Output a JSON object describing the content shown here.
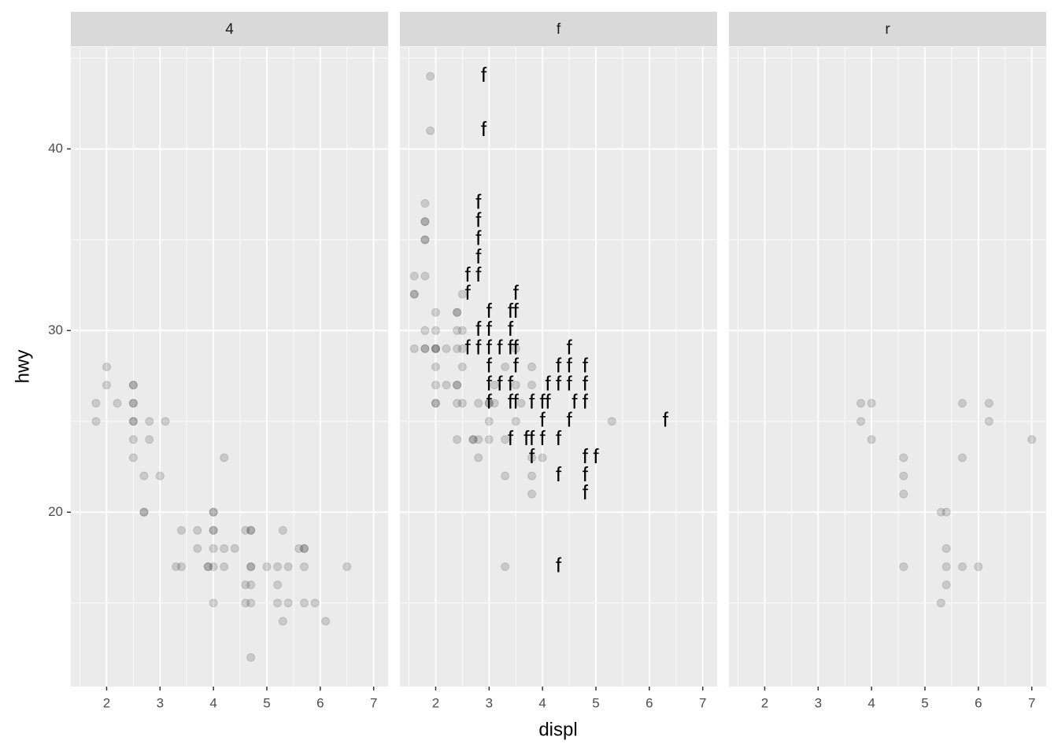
{
  "chart_data": {
    "type": "scatter",
    "x_label": "displ",
    "y_label": "hwy",
    "xlim": [
      1.33,
      7.27
    ],
    "ylim": [
      10.4,
      45.6
    ],
    "xticks": [
      2,
      3,
      4,
      5,
      6,
      7
    ],
    "yticks": [
      20,
      30,
      40
    ],
    "xminor": [
      1.5,
      2.5,
      3.5,
      4.5,
      5.5,
      6.5
    ],
    "yminor": [
      15,
      25,
      35,
      45
    ],
    "grid": true,
    "color": "#000000",
    "panels": [
      {
        "title": "4",
        "x": [
          1.8,
          1.8,
          2,
          2,
          2.2,
          2.5,
          2.5,
          2.5,
          2.5,
          2.5,
          2.5,
          2.5,
          2.5,
          2.7,
          2.7,
          2.7,
          2.8,
          2.8,
          3,
          3.1,
          3.3,
          3.4,
          3.4,
          3.7,
          3.7,
          3.9,
          3.9,
          4,
          4,
          4,
          4,
          4,
          4,
          4,
          4.2,
          4.2,
          4.2,
          4.4,
          4.6,
          4.6,
          4.6,
          4.7,
          4.7,
          4.7,
          4.7,
          4.7,
          4.7,
          4.7,
          5,
          5.2,
          5.2,
          5.2,
          5.3,
          5.3,
          5.4,
          5.4,
          5.6,
          5.7,
          5.7,
          5.7,
          5.7,
          5.9,
          6.1,
          6.5
        ],
        "y": [
          26,
          25,
          28,
          27,
          26,
          27,
          27,
          26,
          26,
          25,
          25,
          24,
          23,
          22,
          20,
          20,
          25,
          24,
          22,
          25,
          17,
          19,
          17,
          19,
          18,
          17,
          17,
          20,
          20,
          19,
          19,
          18,
          17,
          15,
          23,
          18,
          17,
          18,
          19,
          16,
          15,
          19,
          19,
          17,
          17,
          16,
          15,
          12,
          17,
          17,
          16,
          15,
          19,
          14,
          17,
          15,
          18,
          18,
          18,
          17,
          15,
          15,
          14,
          17
        ]
      },
      {
        "title": "f",
        "x": [
          1.9,
          1.9,
          1.8,
          1.8,
          1.8,
          1.8,
          1.8,
          1.6,
          1.8,
          1.6,
          1.6,
          2.5,
          1.8,
          2,
          2,
          2.4,
          2.4,
          2.5,
          1.6,
          1.8,
          1.8,
          2,
          2,
          2,
          2.2,
          2.4,
          2.5,
          2.4,
          3.5,
          2,
          2.5,
          3.3,
          3.8,
          2,
          2.2,
          2.4,
          2.4,
          3.1,
          3.5,
          3.8,
          2,
          2,
          2.4,
          2.5,
          2.8,
          3,
          3,
          3.1,
          3.6,
          3,
          3.5,
          5.3,
          2.4,
          2.7,
          2.7,
          2.8,
          3,
          3.3,
          2.8,
          3.8,
          4,
          3.3,
          3.8,
          3.8,
          3.3
        ],
        "y": [
          44,
          41,
          37,
          36,
          36,
          35,
          35,
          33,
          33,
          32,
          32,
          32,
          30,
          30,
          31,
          31,
          31,
          30,
          29,
          29,
          29,
          29,
          29,
          29,
          29,
          29,
          29,
          30,
          29,
          28,
          28,
          28,
          28,
          27,
          27,
          27,
          27,
          27,
          27,
          27,
          26,
          26,
          26,
          26,
          26,
          26,
          26,
          26,
          26,
          25,
          25,
          25,
          24,
          24,
          24,
          24,
          24,
          24,
          23,
          23,
          23,
          22,
          22,
          21,
          17
        ],
        "text_labels": {
          "x": [
            2.9,
            2.9,
            2.8,
            2.8,
            2.8,
            2.8,
            2.6,
            2.8,
            2.6,
            3.5,
            3,
            3.4,
            3.5,
            2.8,
            3,
            3.4,
            2.6,
            2.8,
            3,
            3.2,
            3.4,
            3.5,
            4.5,
            3,
            3.5,
            4.3,
            4.5,
            4.8,
            3,
            3.2,
            3.4,
            4.1,
            4.3,
            4.5,
            4.8,
            3,
            3.4,
            3.5,
            3.8,
            4,
            4.1,
            4.6,
            4.8,
            4,
            4.5,
            6.3,
            3.4,
            3.7,
            3.8,
            4,
            4.3,
            3.8,
            4.8,
            5,
            4.3,
            4.8,
            4.8,
            4.3
          ],
          "y": [
            44,
            41,
            37,
            36,
            35,
            34,
            33,
            33,
            32,
            32,
            31,
            31,
            31,
            30,
            30,
            30,
            29,
            29,
            29,
            29,
            29,
            29,
            29,
            28,
            28,
            28,
            28,
            28,
            27,
            27,
            27,
            27,
            27,
            27,
            27,
            26,
            26,
            26,
            26,
            26,
            26,
            26,
            26,
            25,
            25,
            25,
            24,
            24,
            24,
            24,
            24,
            23,
            23,
            23,
            22,
            22,
            21,
            17
          ],
          "labels": [
            "f",
            "f",
            "f",
            "f",
            "f",
            "f",
            "f",
            "f",
            "f",
            "f",
            "f",
            "f",
            "f",
            "f",
            "f",
            "f",
            "f",
            "f",
            "f",
            "f",
            "f",
            "f",
            "f",
            "f",
            "f",
            "f",
            "f",
            "f",
            "f",
            "f",
            "f",
            "f",
            "f",
            "f",
            "f",
            "f",
            "f",
            "f",
            "f",
            "f",
            "f",
            "f",
            "f",
            "f",
            "f",
            "f",
            "f",
            "f",
            "f",
            "f",
            "f",
            "f",
            "f",
            "f",
            "f",
            "f",
            "f",
            "f"
          ]
        }
      },
      {
        "title": "r",
        "x": [
          3.8,
          4,
          3.8,
          4,
          4.6,
          4.6,
          4.6,
          4.6,
          5.3,
          5.4,
          5.4,
          5.4,
          5.4,
          5.3,
          5.7,
          5.7,
          5.7,
          6,
          6.2,
          6.2,
          7
        ],
        "y": [
          26,
          26,
          25,
          24,
          23,
          22,
          21,
          17,
          20,
          20,
          18,
          17,
          16,
          15,
          26,
          23,
          17,
          17,
          26,
          25,
          24
        ]
      }
    ]
  }
}
